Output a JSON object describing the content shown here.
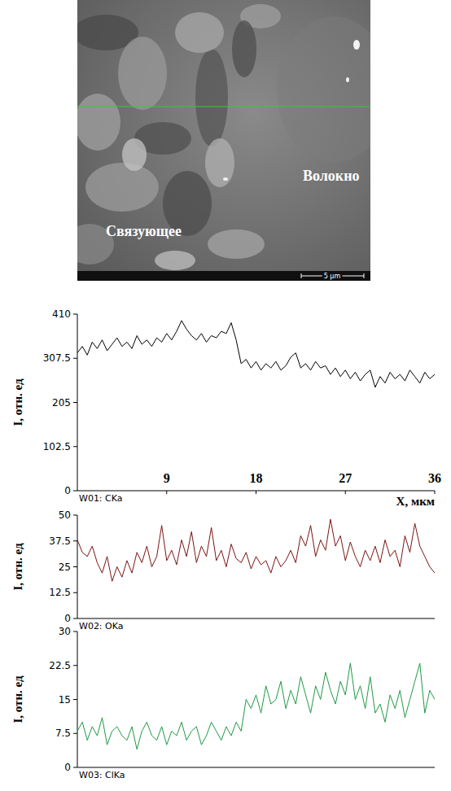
{
  "image": {
    "labels": [
      "Волокно",
      "Связующее"
    ],
    "scale_bar": "5 μm"
  },
  "chart_data": [
    {
      "type": "line",
      "ylabel": "I, отн. ед",
      "xlabel": "X, мкм",
      "xlim": [
        0,
        36
      ],
      "xticks": [
        9,
        18,
        27,
        36
      ],
      "ylim": [
        0,
        410
      ],
      "yticks": [
        0,
        102.5,
        205,
        307.5,
        410
      ],
      "x": [
        0,
        0.5,
        1,
        1.5,
        2,
        2.5,
        3,
        3.5,
        4,
        4.5,
        5,
        5.5,
        6,
        6.5,
        7,
        7.5,
        8,
        8.5,
        9,
        9.5,
        10,
        10.5,
        11,
        11.5,
        12,
        12.5,
        13,
        13.5,
        14,
        14.5,
        15,
        15.5,
        16,
        16.5,
        17,
        17.5,
        18,
        18.5,
        19,
        19.5,
        20,
        20.5,
        21,
        21.5,
        22,
        22.5,
        23,
        23.5,
        24,
        24.5,
        25,
        25.5,
        26,
        26.5,
        27,
        27.5,
        28,
        28.5,
        29,
        29.5,
        30,
        30.5,
        31,
        31.5,
        32,
        32.5,
        33,
        33.5,
        34,
        34.5,
        35,
        35.5,
        36
      ],
      "series": [
        {
          "name": "W01: CKa",
          "color": "#000000",
          "values": [
            320,
            335,
            315,
            345,
            330,
            350,
            325,
            340,
            355,
            335,
            345,
            330,
            360,
            340,
            350,
            335,
            355,
            345,
            365,
            350,
            370,
            395,
            375,
            360,
            350,
            365,
            345,
            360,
            355,
            370,
            365,
            390,
            350,
            295,
            305,
            285,
            300,
            280,
            295,
            285,
            300,
            280,
            290,
            310,
            320,
            285,
            295,
            280,
            300,
            285,
            290,
            270,
            285,
            265,
            280,
            260,
            275,
            255,
            270,
            280,
            240,
            265,
            250,
            275,
            260,
            270,
            255,
            280,
            265,
            250,
            275,
            260,
            270
          ]
        }
      ]
    },
    {
      "type": "line",
      "ylabel": "I, отн. ед",
      "tick_labels": "y",
      "xlim": [
        0,
        36
      ],
      "ylim": [
        0,
        50
      ],
      "yticks": [
        0,
        12.5,
        25,
        37.5,
        50
      ],
      "x": [
        0,
        0.5,
        1,
        1.5,
        2,
        2.5,
        3,
        3.5,
        4,
        4.5,
        5,
        5.5,
        6,
        6.5,
        7,
        7.5,
        8,
        8.5,
        9,
        9.5,
        10,
        10.5,
        11,
        11.5,
        12,
        12.5,
        13,
        13.5,
        14,
        14.5,
        15,
        15.5,
        16,
        16.5,
        17,
        17.5,
        18,
        18.5,
        19,
        19.5,
        20,
        20.5,
        21,
        21.5,
        22,
        22.5,
        23,
        23.5,
        24,
        24.5,
        25,
        25.5,
        26,
        26.5,
        27,
        27.5,
        28,
        28.5,
        29,
        29.5,
        30,
        30.5,
        31,
        31.5,
        32,
        32.5,
        33,
        33.5,
        34,
        34.5,
        35,
        35.5,
        36
      ],
      "series": [
        {
          "name": "W02: OKa",
          "color": "#7b1414",
          "values": [
            38,
            32,
            30,
            35,
            27,
            22,
            30,
            18,
            25,
            20,
            28,
            22,
            32,
            27,
            35,
            25,
            30,
            45,
            28,
            33,
            26,
            38,
            30,
            42,
            27,
            35,
            30,
            44,
            28,
            33,
            25,
            36,
            29,
            27,
            32,
            24,
            30,
            26,
            28,
            22,
            30,
            25,
            28,
            33,
            27,
            40,
            35,
            45,
            30,
            38,
            33,
            48,
            35,
            40,
            28,
            37,
            30,
            25,
            33,
            28,
            35,
            27,
            38,
            30,
            33,
            25,
            40,
            32,
            46,
            35,
            30,
            25,
            22
          ]
        }
      ]
    },
    {
      "type": "line",
      "ylabel": "I, отн. ед",
      "tick_labels": "y",
      "xlim": [
        0,
        36
      ],
      "ylim": [
        0,
        30
      ],
      "yticks": [
        0,
        7.5,
        15,
        22.5,
        30
      ],
      "x": [
        0,
        0.5,
        1,
        1.5,
        2,
        2.5,
        3,
        3.5,
        4,
        4.5,
        5,
        5.5,
        6,
        6.5,
        7,
        7.5,
        8,
        8.5,
        9,
        9.5,
        10,
        10.5,
        11,
        11.5,
        12,
        12.5,
        13,
        13.5,
        14,
        14.5,
        15,
        15.5,
        16,
        16.5,
        17,
        17.5,
        18,
        18.5,
        19,
        19.5,
        20,
        20.5,
        21,
        21.5,
        22,
        22.5,
        23,
        23.5,
        24,
        24.5,
        25,
        25.5,
        26,
        26.5,
        27,
        27.5,
        28,
        28.5,
        29,
        29.5,
        30,
        30.5,
        31,
        31.5,
        32,
        32.5,
        33,
        33.5,
        34,
        34.5,
        35,
        35.5,
        36
      ],
      "series": [
        {
          "name": "W03: ClKa",
          "color": "#1f9a45",
          "values": [
            8,
            10,
            6,
            9,
            7,
            11,
            5,
            8,
            9,
            7,
            6,
            9,
            4,
            8,
            10,
            7,
            6,
            9,
            5,
            8,
            7,
            10,
            6,
            8,
            9,
            5,
            7,
            10,
            8,
            6,
            9,
            7,
            10,
            8,
            15,
            13,
            16,
            12,
            18,
            14,
            15,
            19,
            13,
            17,
            14,
            20,
            16,
            12,
            18,
            15,
            21,
            17,
            14,
            19,
            16,
            23,
            15,
            18,
            13,
            20,
            12,
            14,
            10,
            16,
            13,
            17,
            11,
            15,
            19,
            23,
            12,
            17,
            15
          ]
        }
      ]
    }
  ]
}
